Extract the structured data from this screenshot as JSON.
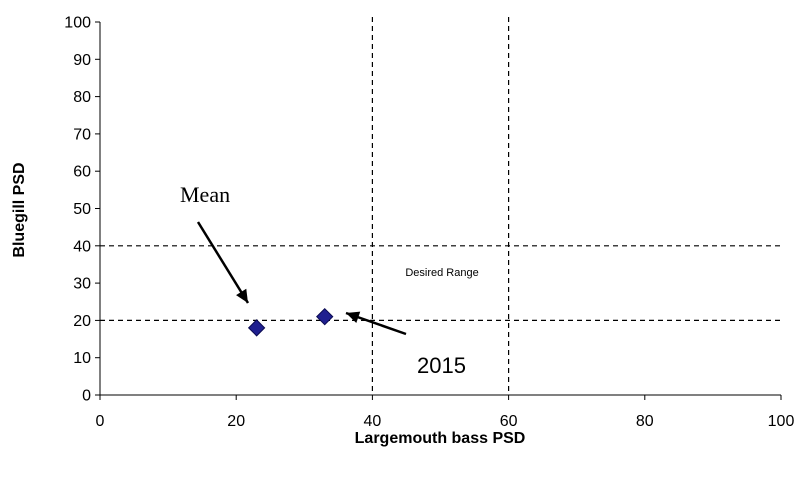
{
  "chart_data": {
    "type": "scatter",
    "xlabel": "Largemouth bass PSD",
    "ylabel": "Bluegill PSD",
    "xlim": [
      0,
      100
    ],
    "ylim": [
      0,
      100
    ],
    "xticks": [
      0,
      20,
      40,
      60,
      80,
      100
    ],
    "yticks": [
      0,
      10,
      20,
      30,
      40,
      50,
      60,
      70,
      80,
      90,
      100
    ],
    "grid": false,
    "series": [
      {
        "points": [
          {
            "x": 23,
            "y": 18
          },
          {
            "x": 33,
            "y": 21
          }
        ],
        "color": "#1F1F8F",
        "marker": "diamond"
      }
    ],
    "reference_lines": {
      "horizontal": [
        20,
        40
      ],
      "vertical": [
        40,
        60
      ],
      "style": "dashed"
    },
    "annotations": [
      {
        "text": "Mean",
        "target": {
          "x": 23,
          "y": 18
        }
      },
      {
        "text": "2015",
        "target": {
          "x": 33,
          "y": 21
        }
      },
      {
        "text": "Desired Range"
      }
    ]
  }
}
